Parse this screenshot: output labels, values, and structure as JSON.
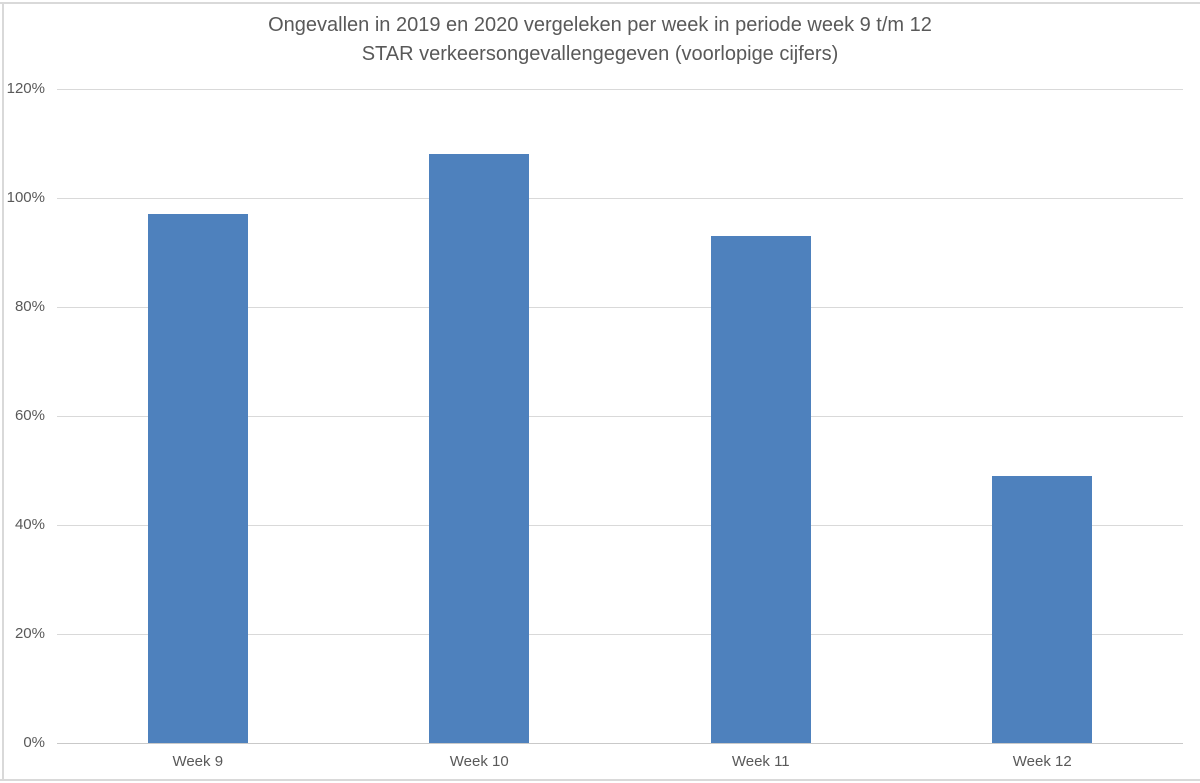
{
  "chart_data": {
    "type": "bar",
    "title": "Ongevallen in 2019 en 2020 vergeleken per week in periode week 9 t/m 12",
    "subtitle": "STAR verkeersongevallengegeven (voorlopige cijfers)",
    "categories": [
      "Week 9",
      "Week 10",
      "Week 11",
      "Week 12"
    ],
    "values": [
      97,
      108,
      93,
      49
    ],
    "unit": "%",
    "xlabel": "",
    "ylabel": "",
    "ylim": [
      0,
      120
    ],
    "ytick_step": 20,
    "ytick_labels": [
      "0%",
      "20%",
      "40%",
      "60%",
      "80%",
      "100%",
      "120%"
    ],
    "grid": "horizontal",
    "legend_position": "none",
    "colors": {
      "bar": "#4E81BD",
      "gridline": "#D9D9D9",
      "axis_line": "#C9C9C9",
      "text": "#595959",
      "frame_border": "#D9D9D9",
      "background": "#FFFFFF"
    }
  }
}
